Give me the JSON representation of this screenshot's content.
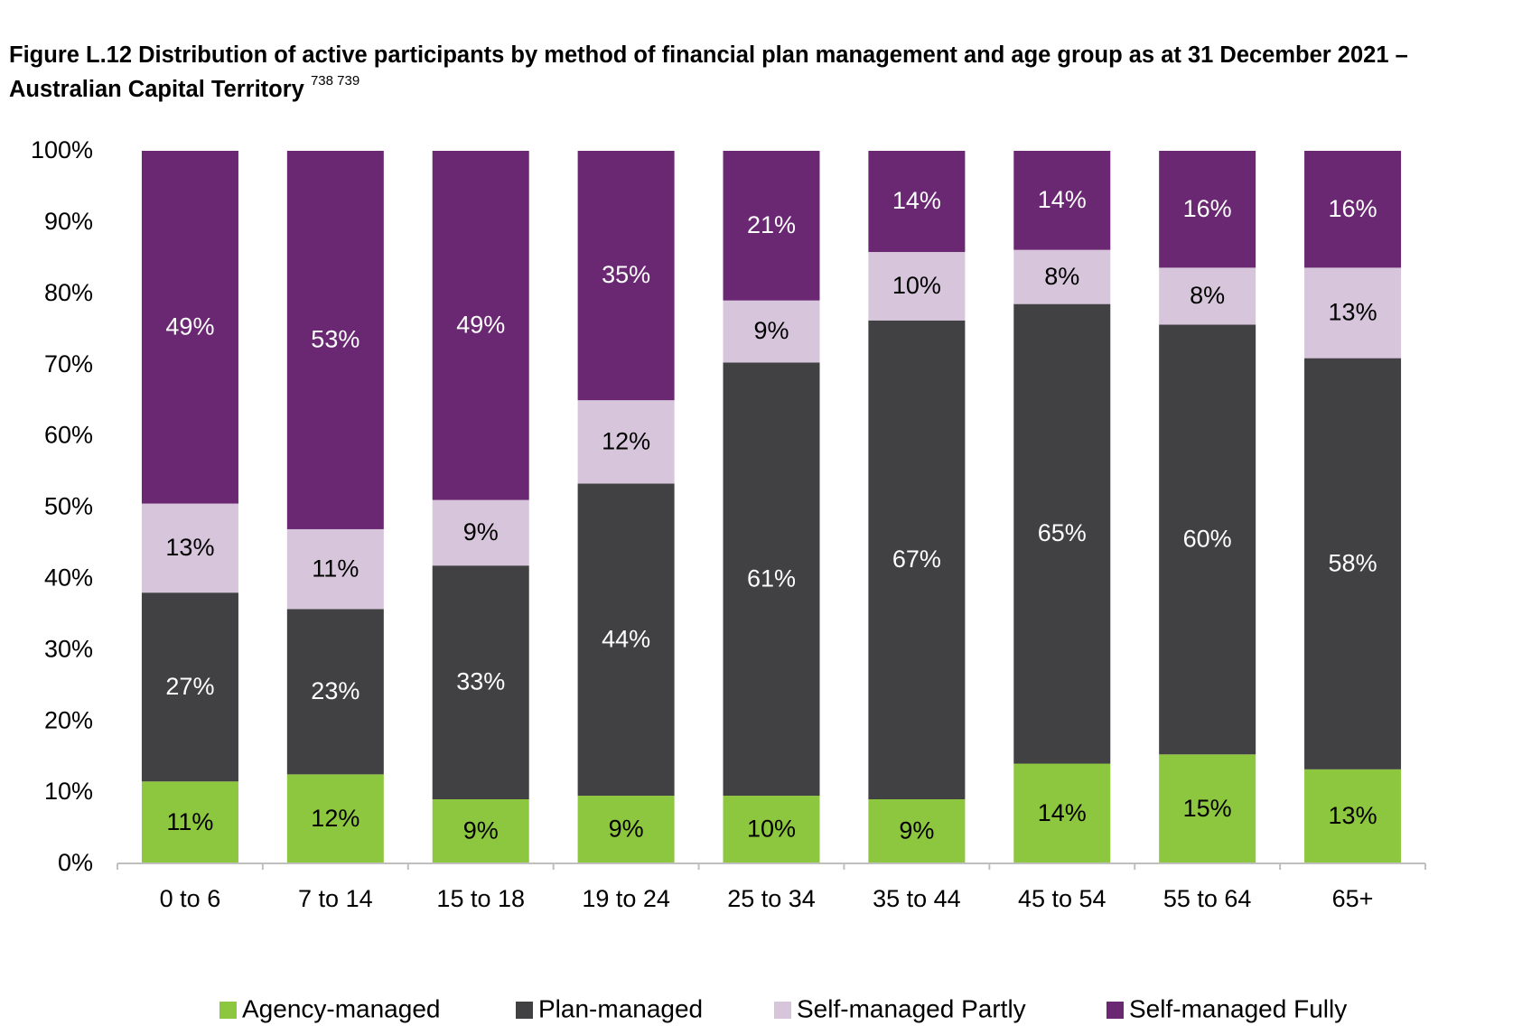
{
  "chart_title": "Figure L.12 Distribution of active participants by method of financial plan management and age group as at 31 December 2021 – Australian Capital Territory",
  "title_superscript": "738 739",
  "chart_data": {
    "type": "bar",
    "stacked": true,
    "title": "Figure L.12 Distribution of active participants by method of financial plan management and age group as at 31 December 2021 – Australian Capital Territory",
    "xlabel": "",
    "ylabel": "",
    "ylim": [
      0,
      100
    ],
    "y_ticks": [
      "0%",
      "10%",
      "20%",
      "30%",
      "40%",
      "50%",
      "60%",
      "70%",
      "80%",
      "90%",
      "100%"
    ],
    "categories": [
      "0 to 6",
      "7 to 14",
      "15 to 18",
      "19 to 24",
      "25 to 34",
      "35 to 44",
      "45 to 54",
      "55 to 64",
      "65+"
    ],
    "series": [
      {
        "name": "Agency-managed",
        "color": "#8dc63f",
        "label_color": "#000000",
        "values": [
          11.5,
          12.5,
          9.0,
          9.5,
          9.5,
          9.0,
          14.0,
          15.3,
          13.2
        ],
        "labels": [
          "11%",
          "12%",
          "9%",
          "9%",
          "10%",
          "9%",
          "14%",
          "15%",
          "13%"
        ]
      },
      {
        "name": "Plan-managed",
        "color": "#414042",
        "label_color": "#ffffff",
        "values": [
          26.5,
          23.2,
          32.8,
          43.8,
          60.8,
          67.2,
          64.5,
          60.3,
          57.7
        ],
        "labels": [
          "27%",
          "23%",
          "33%",
          "44%",
          "61%",
          "67%",
          "65%",
          "60%",
          "58%"
        ]
      },
      {
        "name": "Self-managed Partly",
        "color": "#d7c5db",
        "label_color": "#000000",
        "values": [
          12.5,
          11.2,
          9.2,
          11.7,
          8.7,
          9.6,
          7.6,
          8.0,
          12.7
        ],
        "labels": [
          "13%",
          "11%",
          "9%",
          "12%",
          "9%",
          "10%",
          "8%",
          "8%",
          "13%"
        ]
      },
      {
        "name": "Self-managed Fully",
        "color": "#6a2873",
        "label_color": "#ffffff",
        "values": [
          49.5,
          53.1,
          49.0,
          35.0,
          21.0,
          14.2,
          13.9,
          16.4,
          16.4
        ],
        "labels": [
          "49%",
          "53%",
          "49%",
          "35%",
          "21%",
          "14%",
          "14%",
          "16%",
          "16%"
        ]
      }
    ],
    "legend_position": "bottom",
    "grid": false
  }
}
